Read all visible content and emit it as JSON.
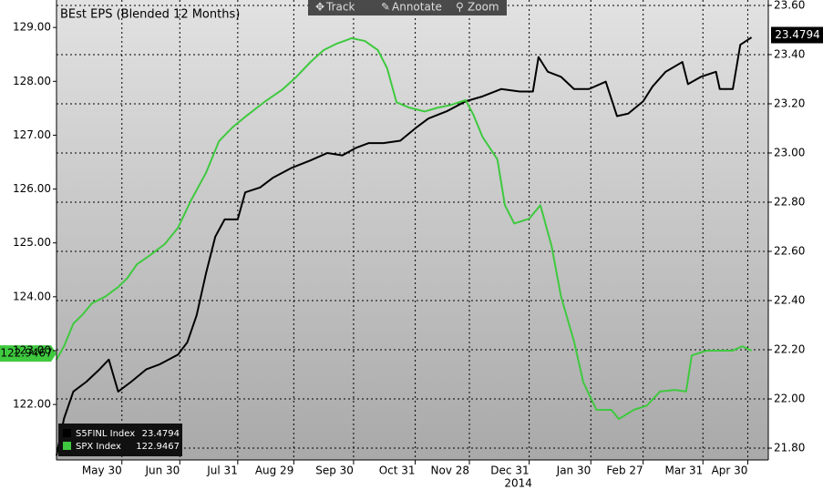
{
  "chart_data": {
    "type": "line",
    "title": "BEst EPS (Blended 12 Months)",
    "toolbar": [
      "Track",
      "Annotate",
      "Zoom"
    ],
    "xlim": [
      0,
      381
    ],
    "xticks": [
      {
        "value": 35,
        "label": "May 30"
      },
      {
        "value": 66,
        "label": "Jun 30"
      },
      {
        "value": 97,
        "label": "Jul 31"
      },
      {
        "value": 127,
        "label": "Aug 29"
      },
      {
        "value": 159,
        "label": "Sep 30"
      },
      {
        "value": 192,
        "label": "Oct 31"
      },
      {
        "value": 221,
        "label": "Nov 28"
      },
      {
        "value": 253,
        "label": "Dec 31"
      },
      {
        "value": 286,
        "label": "Jan 30"
      },
      {
        "value": 314,
        "label": "Feb 27"
      },
      {
        "value": 346,
        "label": "Mar 31"
      },
      {
        "value": 370,
        "label": "Apr 30"
      }
    ],
    "year_label": "2014",
    "ylim": [
      120.97,
      129.51
    ],
    "yticks": [
      {
        "value": 122,
        "label": "122.00"
      },
      {
        "value": 123,
        "label": "123.00"
      },
      {
        "value": 124,
        "label": "124.00"
      },
      {
        "value": 125,
        "label": "125.00"
      },
      {
        "value": 126,
        "label": "126.00"
      },
      {
        "value": 127,
        "label": "127.00"
      },
      {
        "value": 128,
        "label": "128.00"
      },
      {
        "value": 129,
        "label": "129.00"
      }
    ],
    "y2lim": [
      21.752,
      23.622
    ],
    "y2ticks": [
      {
        "value": 21.8,
        "label": "21.80"
      },
      {
        "value": 22.0,
        "label": "22.00"
      },
      {
        "value": 22.2,
        "label": "22.20"
      },
      {
        "value": 22.4,
        "label": "22.40"
      },
      {
        "value": 22.6,
        "label": "22.60"
      },
      {
        "value": 22.8,
        "label": "22.80"
      },
      {
        "value": 23.0,
        "label": "23.00"
      },
      {
        "value": 23.2,
        "label": "23.20"
      },
      {
        "value": 23.4,
        "label": "23.40"
      },
      {
        "value": 23.6,
        "label": "23.60"
      }
    ],
    "grid": true,
    "series": [
      {
        "name": "S5FINL Index",
        "color": "#000000",
        "axis": "y2",
        "last_value": 23.4794,
        "x": [
          0,
          4,
          9,
          16,
          23,
          28,
          33,
          40,
          48,
          55,
          65,
          70,
          75,
          80,
          85,
          90,
          97,
          101,
          109,
          116,
          126,
          136,
          145,
          153,
          160,
          167,
          175,
          184,
          192,
          199,
          209,
          219,
          228,
          238,
          248,
          255,
          258,
          263,
          270,
          277,
          285,
          294,
          300,
          306,
          314,
          319,
          326,
          335,
          338,
          345,
          353,
          355,
          362,
          366,
          372
        ],
        "values": [
          21.77,
          21.92,
          22.03,
          22.07,
          22.12,
          22.16,
          22.03,
          22.07,
          22.12,
          22.14,
          22.18,
          22.23,
          22.34,
          22.51,
          22.66,
          22.73,
          22.73,
          22.84,
          22.86,
          22.9,
          22.94,
          22.97,
          23.0,
          22.99,
          23.02,
          23.04,
          23.04,
          23.05,
          23.1,
          23.14,
          23.17,
          23.21,
          23.23,
          23.26,
          23.25,
          23.25,
          23.39,
          23.33,
          23.31,
          23.26,
          23.26,
          23.29,
          23.15,
          23.16,
          23.21,
          23.27,
          23.33,
          23.37,
          23.28,
          23.31,
          23.33,
          23.26,
          23.26,
          23.44,
          23.47
        ]
      },
      {
        "name": "SPX Index",
        "color": "#3fc93f",
        "axis": "y",
        "last_value": 122.9467,
        "x": [
          0,
          4,
          9,
          14,
          19,
          26,
          33,
          38,
          43,
          50,
          58,
          65,
          72,
          80,
          87,
          94,
          101,
          111,
          121,
          128,
          136,
          143,
          150,
          158,
          165,
          172,
          177,
          182,
          189,
          197,
          204,
          211,
          219,
          223,
          228,
          236,
          240,
          245,
          253,
          259,
          265,
          270,
          277,
          282,
          289,
          297,
          301,
          309,
          316,
          323,
          331,
          337,
          340,
          348,
          355,
          362,
          367,
          372
        ],
        "values": [
          122.83,
          123.08,
          123.5,
          123.67,
          123.88,
          124.0,
          124.18,
          124.35,
          124.6,
          124.77,
          124.98,
          125.28,
          125.79,
          126.3,
          126.89,
          127.14,
          127.34,
          127.61,
          127.85,
          128.07,
          128.36,
          128.58,
          128.7,
          128.8,
          128.75,
          128.58,
          128.24,
          127.61,
          127.51,
          127.44,
          127.51,
          127.56,
          127.65,
          127.39,
          126.97,
          126.55,
          125.7,
          125.36,
          125.45,
          125.7,
          124.94,
          124.01,
          123.17,
          122.41,
          121.9,
          121.9,
          121.73,
          121.9,
          121.98,
          122.24,
          122.27,
          122.24,
          122.91,
          123.0,
          123.0,
          123.0,
          123.08,
          123.0
        ]
      }
    ]
  }
}
